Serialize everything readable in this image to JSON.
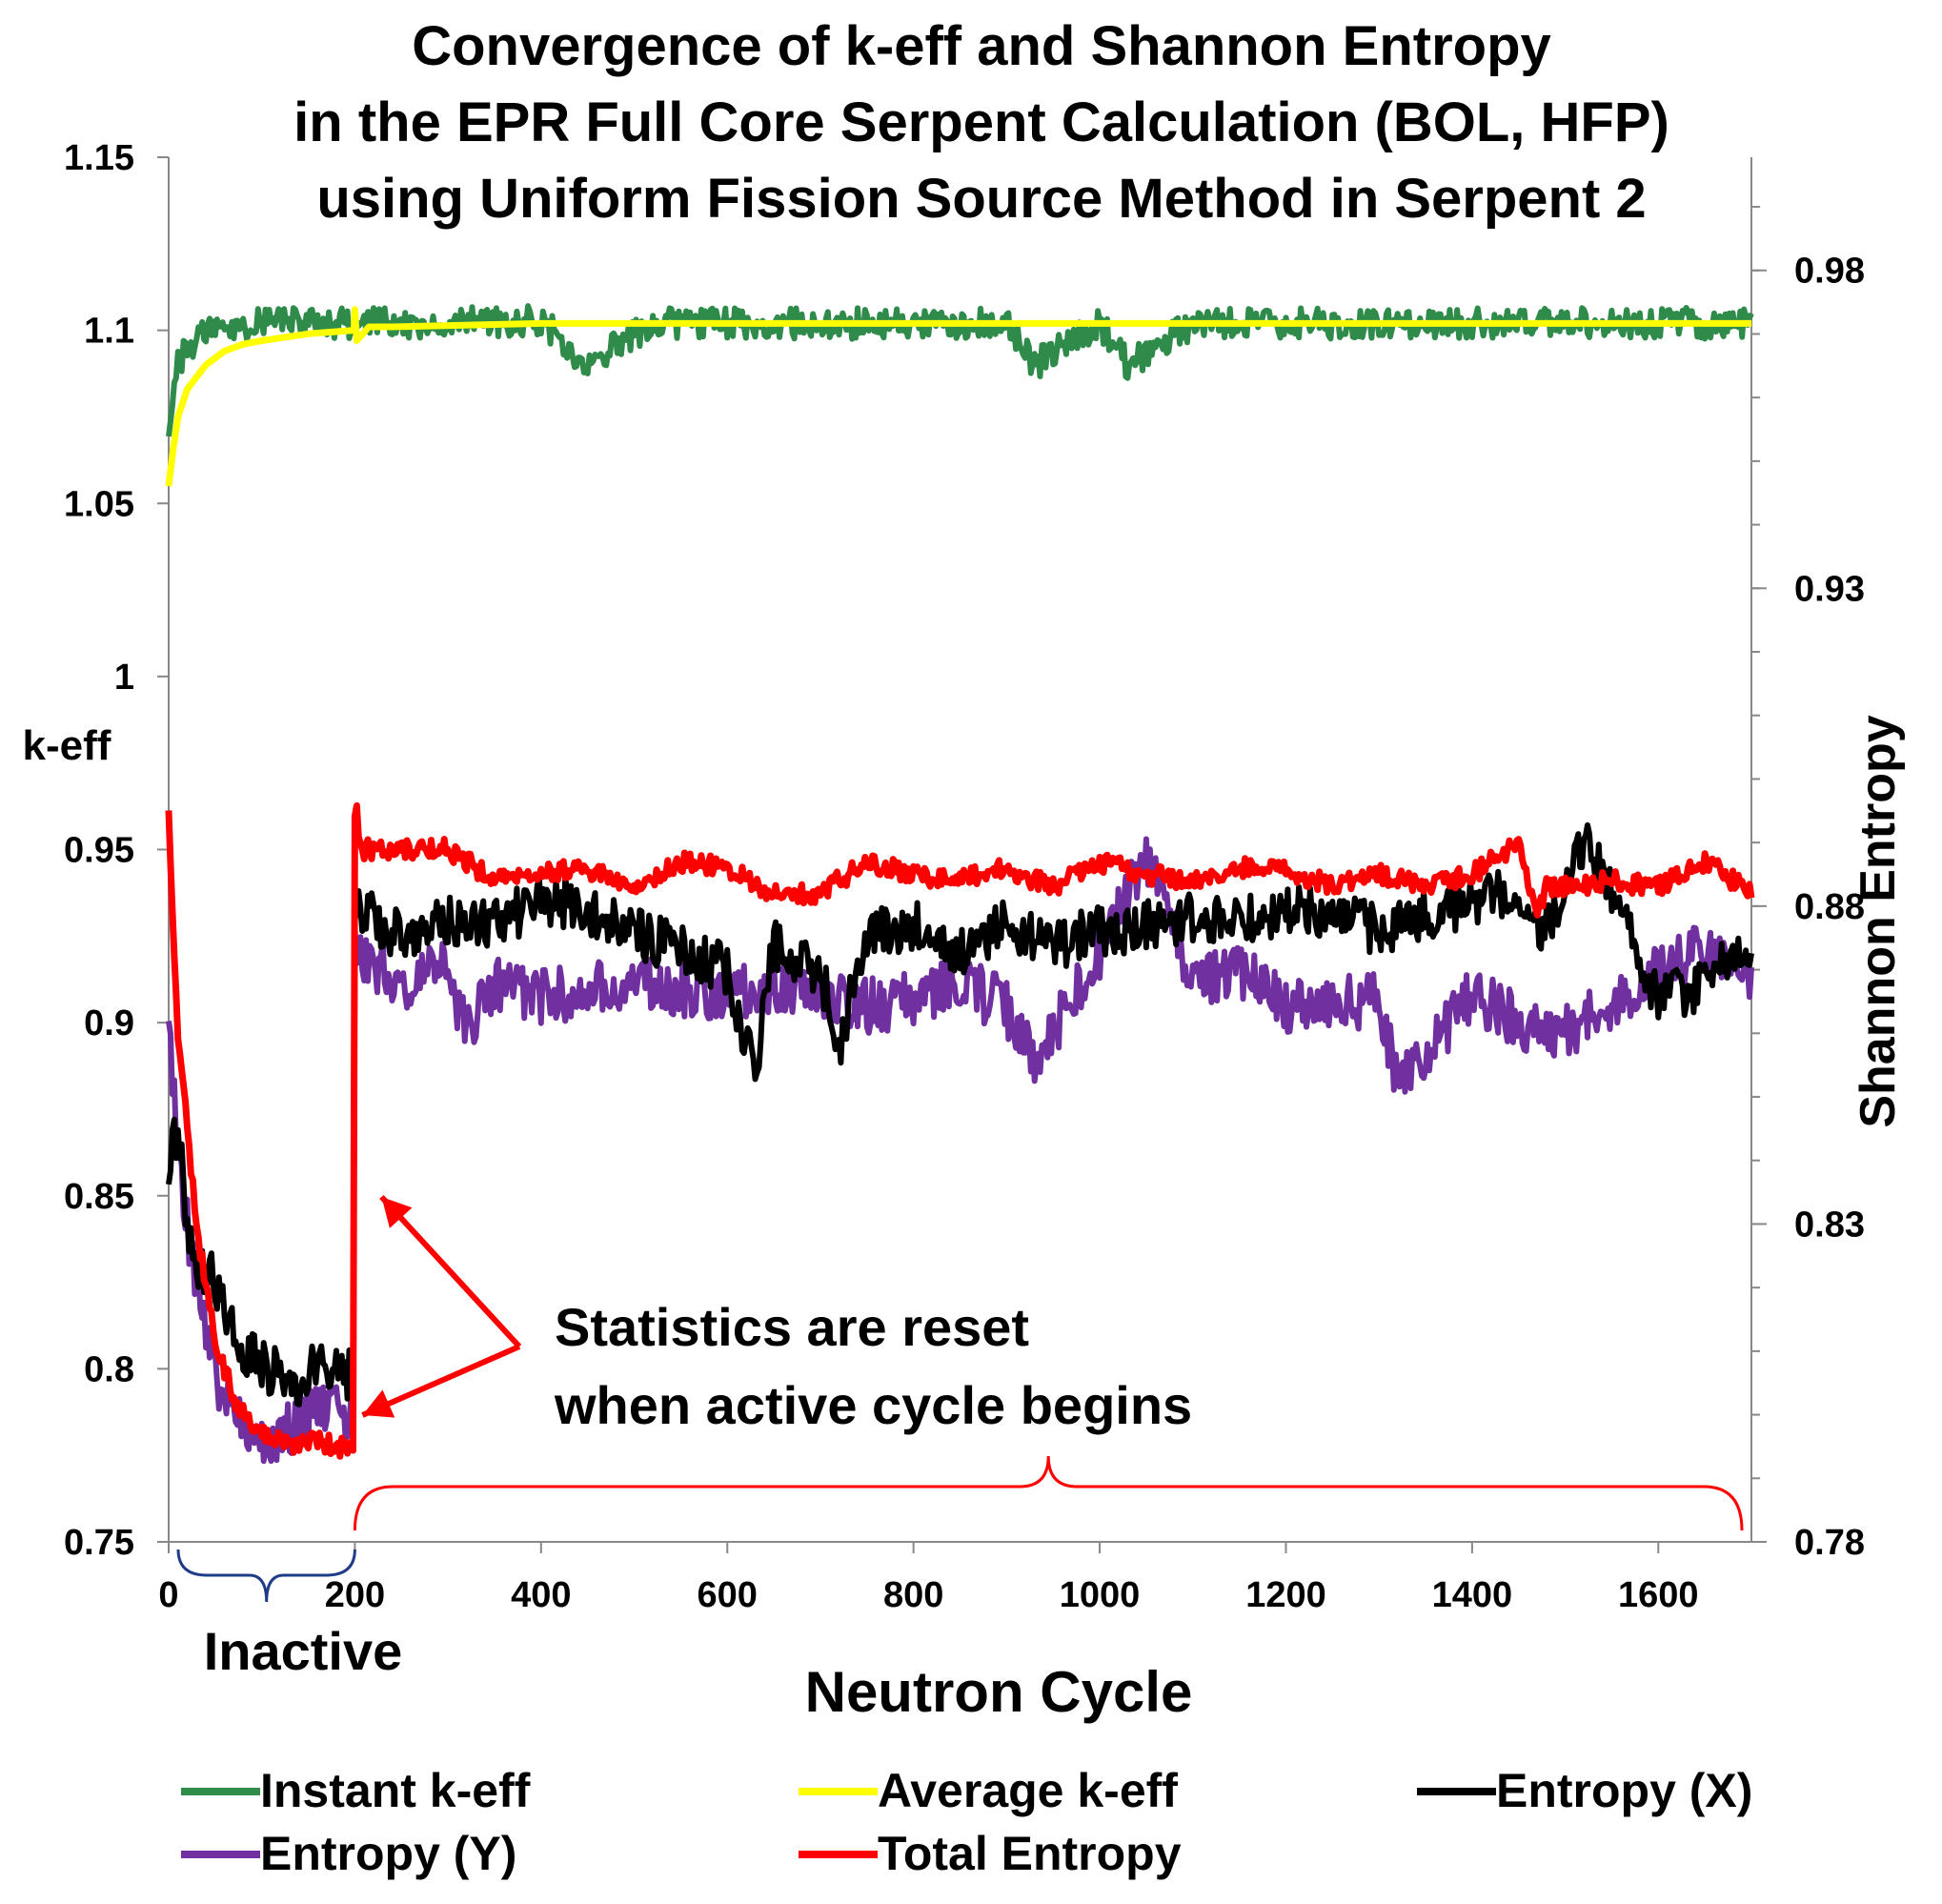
{
  "chart_data": {
    "type": "line",
    "title_lines": [
      "Convergence of k-eff and Shannon Entropy",
      "in the EPR Full Core Serpent Calculation (BOL, HFP)",
      "using Uniform Fission Source Method in Serpent 2"
    ],
    "xlabel": "Neutron Cycle",
    "ylabel_left": "k-eff",
    "ylabel_right": "Shannon Entropy",
    "xlim": [
      0,
      1700
    ],
    "ylim_left": [
      0.75,
      1.15
    ],
    "ylim_right": [
      0.78,
      0.9978
    ],
    "x_ticks": [
      "0",
      "200",
      "400",
      "600",
      "800",
      "1000",
      "1200",
      "1400",
      "1600"
    ],
    "x_tick_values": [
      0,
      200,
      400,
      600,
      800,
      1000,
      1200,
      1400,
      1600
    ],
    "y_left_ticks": [
      "0.75",
      "0.8",
      "0.85",
      "0.9",
      "0.95",
      "1",
      "1.05",
      "1.1",
      "1.15"
    ],
    "y_left_tick_values": [
      0.75,
      0.8,
      0.85,
      0.9,
      0.95,
      1.0,
      1.05,
      1.1,
      1.15
    ],
    "y_right_ticks": [
      "0.78",
      "0.83",
      "0.88",
      "0.93",
      "0.98"
    ],
    "y_right_tick_values": [
      0.78,
      0.83,
      0.88,
      0.93,
      0.98
    ],
    "y_right_minor_step": 0.01,
    "annotations": {
      "reset_line1": "Statistics are reset",
      "reset_line2": "when active cycle begins",
      "inactive_label": "Inactive",
      "inactive_range": [
        0,
        200
      ],
      "active_range": [
        200,
        1700
      ]
    },
    "series": [
      {
        "name": "Instant k-eff",
        "axis": "left",
        "color": "#2e8b4a",
        "x": [
          0,
          10,
          20,
          40,
          60,
          100,
          150,
          200,
          210,
          300,
          400,
          450,
          520,
          600,
          700,
          800,
          900,
          930,
          1000,
          1030,
          1100,
          1200,
          1300,
          1400,
          1500,
          1600,
          1700
        ],
        "values": [
          1.07,
          1.09,
          1.095,
          1.1,
          1.1,
          1.103,
          1.102,
          1.102,
          1.102,
          1.102,
          1.103,
          1.09,
          1.102,
          1.102,
          1.102,
          1.102,
          1.102,
          1.09,
          1.102,
          1.09,
          1.102,
          1.102,
          1.102,
          1.102,
          1.102,
          1.102,
          1.102
        ]
      },
      {
        "name": "Average k-eff",
        "axis": "left",
        "color": "#ffff00",
        "x": [
          0,
          5,
          10,
          20,
          40,
          60,
          80,
          100,
          150,
          199,
          200,
          202,
          215,
          240,
          400,
          800,
          1200,
          1700
        ],
        "values": [
          1.055,
          1.066,
          1.075,
          1.083,
          1.09,
          1.094,
          1.096,
          1.097,
          1.099,
          1.1,
          1.106,
          1.097,
          1.101,
          1.101,
          1.102,
          1.102,
          1.102,
          1.102
        ]
      },
      {
        "name": "Entropy (X)",
        "axis": "right",
        "color": "#000000",
        "x": [
          0,
          10,
          20,
          30,
          40,
          50,
          60,
          70,
          80,
          100,
          120,
          140,
          160,
          180,
          199,
          200,
          205,
          250,
          300,
          350,
          400,
          440,
          500,
          550,
          600,
          630,
          650,
          700,
          720,
          750,
          800,
          850,
          900,
          950,
          1000,
          1050,
          1100,
          1150,
          1200,
          1250,
          1300,
          1350,
          1400,
          1450,
          1470,
          1500,
          1520,
          1540,
          1560,
          1600,
          1650,
          1700
        ],
        "values": [
          0.84,
          0.845,
          0.83,
          0.823,
          0.822,
          0.821,
          0.818,
          0.812,
          0.81,
          0.808,
          0.806,
          0.805,
          0.808,
          0.807,
          0.806,
          0.876,
          0.88,
          0.875,
          0.878,
          0.877,
          0.881,
          0.88,
          0.876,
          0.873,
          0.87,
          0.853,
          0.874,
          0.87,
          0.858,
          0.876,
          0.877,
          0.873,
          0.877,
          0.874,
          0.876,
          0.877,
          0.878,
          0.878,
          0.879,
          0.879,
          0.876,
          0.879,
          0.88,
          0.883,
          0.876,
          0.882,
          0.89,
          0.886,
          0.88,
          0.865,
          0.868,
          0.875
        ]
      },
      {
        "name": "Entropy (Y)",
        "axis": "right",
        "color": "#7030a0",
        "x": [
          0,
          10,
          20,
          30,
          40,
          50,
          60,
          70,
          80,
          90,
          100,
          120,
          140,
          160,
          180,
          199,
          200,
          210,
          250,
          300,
          320,
          350,
          400,
          450,
          500,
          550,
          600,
          650,
          700,
          750,
          800,
          850,
          900,
          930,
          1000,
          1050,
          1100,
          1150,
          1200,
          1250,
          1300,
          1320,
          1350,
          1400,
          1450,
          1500,
          1550,
          1600,
          1650,
          1700
        ],
        "values": [
          0.862,
          0.84,
          0.83,
          0.82,
          0.812,
          0.806,
          0.803,
          0.8,
          0.799,
          0.798,
          0.797,
          0.796,
          0.8,
          0.8,
          0.8,
          0.8,
          0.872,
          0.872,
          0.868,
          0.87,
          0.86,
          0.868,
          0.866,
          0.866,
          0.869,
          0.867,
          0.866,
          0.868,
          0.866,
          0.864,
          0.866,
          0.868,
          0.864,
          0.856,
          0.872,
          0.888,
          0.867,
          0.87,
          0.864,
          0.865,
          0.865,
          0.852,
          0.857,
          0.866,
          0.862,
          0.86,
          0.864,
          0.87,
          0.873,
          0.866
        ]
      },
      {
        "name": "Total Entropy",
        "axis": "right",
        "color": "#ff0000",
        "x": [
          0,
          5,
          10,
          20,
          30,
          40,
          50,
          60,
          70,
          80,
          90,
          100,
          120,
          140,
          160,
          180,
          199,
          200,
          202,
          205,
          210,
          250,
          300,
          350,
          400,
          450,
          500,
          550,
          600,
          650,
          700,
          750,
          800,
          850,
          900,
          950,
          1000,
          1050,
          1100,
          1150,
          1200,
          1250,
          1300,
          1350,
          1400,
          1450,
          1470,
          1480,
          1500,
          1550,
          1600,
          1650,
          1700
        ],
        "values": [
          0.895,
          0.875,
          0.86,
          0.845,
          0.83,
          0.82,
          0.812,
          0.807,
          0.803,
          0.8,
          0.798,
          0.797,
          0.796,
          0.795,
          0.796,
          0.795,
          0.795,
          0.895,
          0.895,
          0.89,
          0.889,
          0.889,
          0.889,
          0.884,
          0.885,
          0.886,
          0.882,
          0.887,
          0.886,
          0.882,
          0.882,
          0.887,
          0.885,
          0.884,
          0.886,
          0.883,
          0.887,
          0.885,
          0.884,
          0.886,
          0.886,
          0.883,
          0.885,
          0.883,
          0.885,
          0.89,
          0.878,
          0.883,
          0.883,
          0.884,
          0.883,
          0.887,
          0.882
        ]
      }
    ],
    "legend": [
      "Instant k-eff",
      "Average k-eff",
      "Entropy (X)",
      "Entropy (Y)",
      "Total Entropy"
    ],
    "legend_position": "bottom"
  }
}
